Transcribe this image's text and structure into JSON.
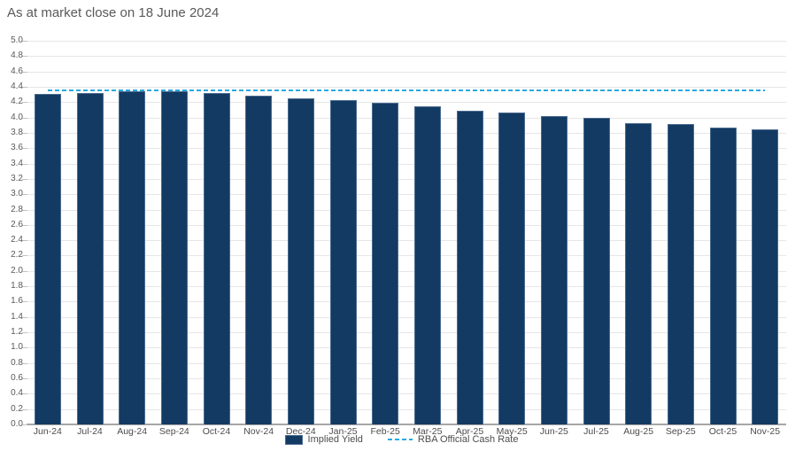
{
  "title": "As at market close on 18 June 2024",
  "colors": {
    "bar_fill": "#133a62",
    "bar_border": "#4a6b8f",
    "cash_rate_line": "#29a9e1",
    "gridline": "#e6e6e6",
    "axis_line": "#a6a6a6",
    "title_text": "#595959",
    "axis_text": "#595959"
  },
  "legend": {
    "items": [
      {
        "label": "Implied Yield",
        "marker": "bar-swatch"
      },
      {
        "label": "RBA Official Cash Rate",
        "marker": "dashed-line-swatch"
      }
    ]
  },
  "chart_data": {
    "type": "bar",
    "title": "As at market close on 18 June 2024",
    "categories": [
      "Jun-24",
      "Jul-24",
      "Aug-24",
      "Sep-24",
      "Oct-24",
      "Nov-24",
      "Dec-24",
      "Jan-25",
      "Feb-25",
      "Mar-25",
      "Apr-25",
      "May-25",
      "Jun-25",
      "Jul-25",
      "Aug-25",
      "Sep-25",
      "Oct-25",
      "Nov-25"
    ],
    "series": [
      {
        "name": "Implied Yield",
        "type": "bar",
        "color": "#133a62",
        "values": [
          4.31,
          4.32,
          4.34,
          4.34,
          4.32,
          4.28,
          4.25,
          4.23,
          4.19,
          4.15,
          4.09,
          4.06,
          4.02,
          3.99,
          3.93,
          3.91,
          3.87,
          3.84
        ]
      },
      {
        "name": "RBA Official Cash Rate",
        "type": "line",
        "dash_style": "dash",
        "color": "#29a9e1",
        "values": [
          4.35,
          4.35,
          4.35,
          4.35,
          4.35,
          4.35,
          4.35,
          4.35,
          4.35,
          4.35,
          4.35,
          4.35,
          4.35,
          4.35,
          4.35,
          4.35,
          4.35,
          4.35
        ]
      }
    ],
    "xlabel": "",
    "ylabel": "",
    "ylim": [
      0.0,
      5.0
    ],
    "ytick_step": 0.2,
    "ytick_format": "one_decimal",
    "grid": true,
    "legend_position": "bottom"
  }
}
